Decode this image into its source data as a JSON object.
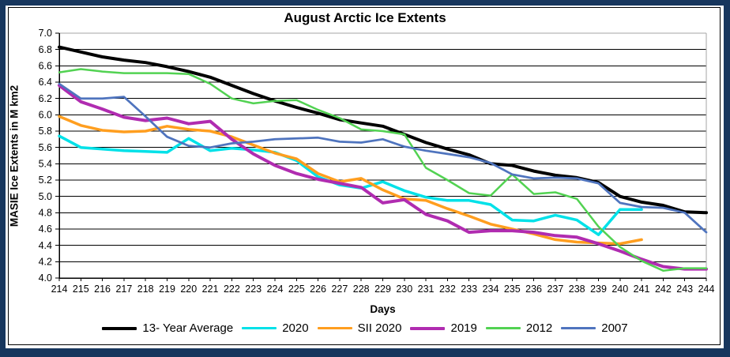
{
  "window": {
    "outer_border_color": "#17365D",
    "inner_border_color": "#000000",
    "background": "#FFFFFF"
  },
  "chart_data": {
    "type": "line",
    "title": "August Arctic Ice Extents",
    "xlabel": "Days",
    "ylabel": "MASIE Ice Extents in M km2",
    "x_start": 214,
    "x_end": 244,
    "x_step": 1,
    "ylim": [
      4.0,
      7.0
    ],
    "y_step": 0.2,
    "grid": "horizontal-black",
    "legend_position": "bottom",
    "x_ticks": [
      214,
      215,
      216,
      217,
      218,
      219,
      220,
      221,
      222,
      223,
      224,
      225,
      226,
      227,
      228,
      229,
      230,
      231,
      232,
      233,
      234,
      235,
      236,
      237,
      238,
      239,
      240,
      241,
      242,
      243,
      244
    ],
    "y_ticks": [
      "4.0",
      "4.2",
      "4.4",
      "4.6",
      "4.8",
      "5.0",
      "5.2",
      "5.4",
      "5.6",
      "5.8",
      "6.0",
      "6.2",
      "6.4",
      "6.6",
      "6.8",
      "7.0"
    ],
    "series": [
      {
        "name": "13- Year Average",
        "color": "#000000",
        "width": 4,
        "start_day": 214,
        "values": [
          6.83,
          6.77,
          6.71,
          6.67,
          6.64,
          6.59,
          6.53,
          6.46,
          6.36,
          6.26,
          6.17,
          6.09,
          6.02,
          5.94,
          5.9,
          5.86,
          5.76,
          5.66,
          5.58,
          5.51,
          5.4,
          5.38,
          5.31,
          5.26,
          5.23,
          5.17,
          5.0,
          4.93,
          4.89,
          4.81,
          4.8
        ]
      },
      {
        "name": "2020",
        "color": "#00E1E8",
        "width": 3.5,
        "start_day": 214,
        "values": [
          5.74,
          5.6,
          5.58,
          5.56,
          5.55,
          5.54,
          5.71,
          5.56,
          5.59,
          5.57,
          5.54,
          5.44,
          5.24,
          5.14,
          5.1,
          5.18,
          5.07,
          4.99,
          4.95,
          4.95,
          4.9,
          4.71,
          4.7,
          4.77,
          4.71,
          4.53,
          4.84,
          4.84
        ]
      },
      {
        "name": "SII 2020",
        "color": "#FF9E1F",
        "width": 3.5,
        "start_day": 214,
        "values": [
          5.98,
          5.87,
          5.81,
          5.79,
          5.8,
          5.86,
          5.82,
          5.8,
          5.73,
          5.63,
          5.53,
          5.46,
          5.28,
          5.18,
          5.22,
          5.08,
          4.97,
          4.95,
          4.85,
          4.76,
          4.66,
          4.6,
          4.54,
          4.47,
          4.44,
          4.43,
          4.42,
          4.47
        ]
      },
      {
        "name": "2019",
        "color": "#B02CB0",
        "width": 4,
        "start_day": 214,
        "values": [
          6.36,
          6.16,
          6.07,
          5.97,
          5.93,
          5.96,
          5.89,
          5.92,
          5.7,
          5.52,
          5.38,
          5.28,
          5.21,
          5.16,
          5.11,
          4.92,
          4.96,
          4.78,
          4.7,
          4.56,
          4.58,
          4.58,
          4.56,
          4.52,
          4.5,
          4.42,
          4.33,
          4.23,
          4.14,
          4.11,
          4.11
        ]
      },
      {
        "name": "2012",
        "color": "#52D252",
        "width": 2.5,
        "start_day": 214,
        "values": [
          6.52,
          6.56,
          6.53,
          6.51,
          6.51,
          6.51,
          6.5,
          6.38,
          6.2,
          6.14,
          6.17,
          6.18,
          6.06,
          5.96,
          5.82,
          5.8,
          5.76,
          5.35,
          5.2,
          5.04,
          5.01,
          5.27,
          5.03,
          5.05,
          4.97,
          4.63,
          4.38,
          4.21,
          4.09,
          4.12,
          4.12
        ]
      },
      {
        "name": "2007",
        "color": "#4F74BE",
        "width": 2.75,
        "start_day": 214,
        "values": [
          6.38,
          6.2,
          6.2,
          6.22,
          5.98,
          5.73,
          5.62,
          5.6,
          5.65,
          5.67,
          5.7,
          5.71,
          5.72,
          5.67,
          5.66,
          5.7,
          5.61,
          5.56,
          5.52,
          5.48,
          5.41,
          5.27,
          5.22,
          5.23,
          5.22,
          5.16,
          4.92,
          4.87,
          4.86,
          4.8,
          4.56
        ]
      }
    ],
    "plot_frame_color": "#A6A6A6",
    "axis_color": "#000000"
  }
}
